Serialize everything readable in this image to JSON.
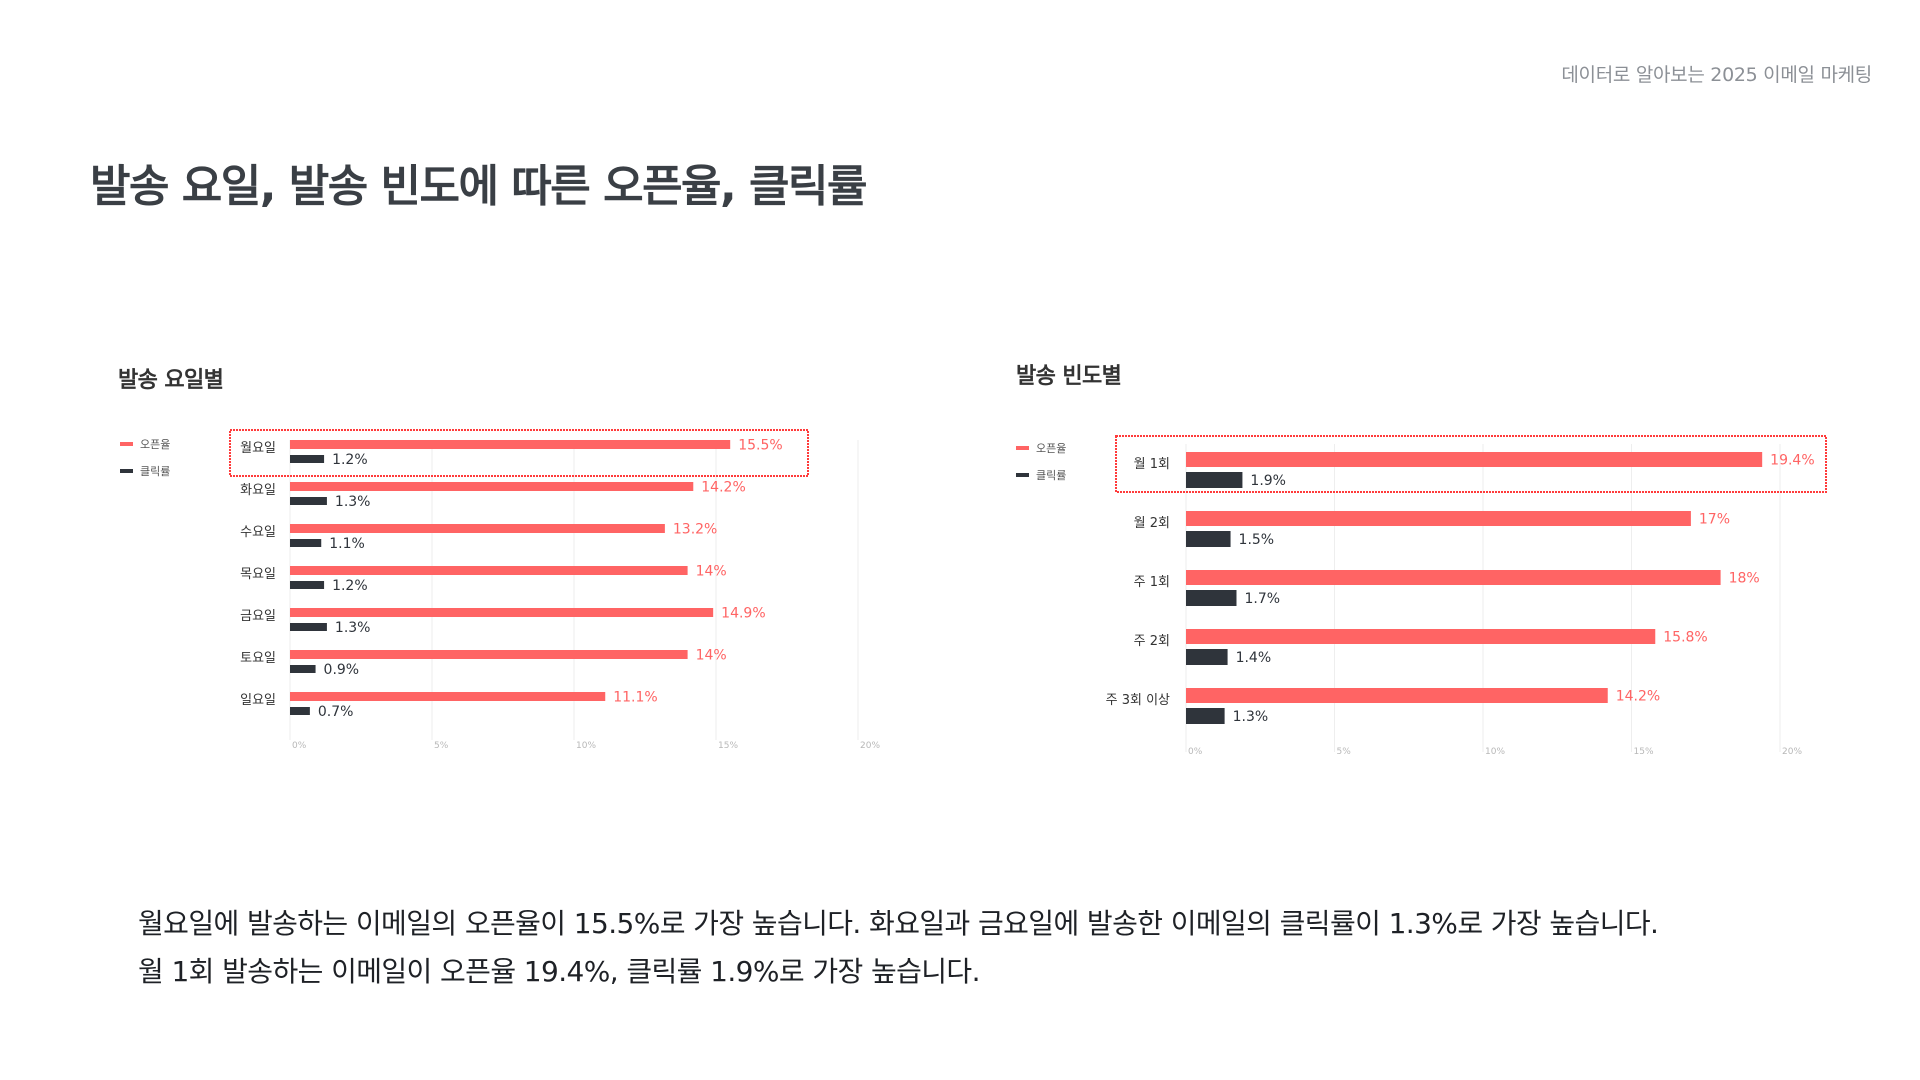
{
  "header": {
    "note": "데이터로 알아보는 2025 이메일 마케팅",
    "title": "발송 요일, 발송 빈도에 따른 오픈율, 클릭률"
  },
  "colors": {
    "open": "#ff6464",
    "click": "#2f343b",
    "highlight": "#ff3b3b",
    "grid": "#eeeeee",
    "tick": "#b8b8b8"
  },
  "chart_data": [
    {
      "type": "bar",
      "orientation": "horizontal",
      "title": "발송 요일별",
      "categories": [
        "월요일",
        "화요일",
        "수요일",
        "목요일",
        "금요일",
        "토요일",
        "일요일"
      ],
      "series": [
        {
          "name": "오픈율",
          "values": [
            15.5,
            14.2,
            13.2,
            14,
            14.9,
            14,
            11.1
          ],
          "labels": [
            "15.5%",
            "14.2%",
            "13.2%",
            "14%",
            "14.9%",
            "14%",
            "11.1%"
          ]
        },
        {
          "name": "클릭률",
          "values": [
            1.2,
            1.3,
            1.1,
            1.2,
            1.3,
            0.9,
            0.7
          ],
          "labels": [
            "1.2%",
            "1.3%",
            "1.1%",
            "1.2%",
            "1.3%",
            "0.9%",
            "0.7%"
          ]
        }
      ],
      "xlim": [
        0,
        20
      ],
      "xticks": [
        "0%",
        "5%",
        "10%",
        "15%",
        "20%"
      ],
      "highlight_category": "월요일",
      "legend": "left",
      "grid": true
    },
    {
      "type": "bar",
      "orientation": "horizontal",
      "title": "발송 빈도별",
      "categories": [
        "월 1회",
        "월 2회",
        "주 1회",
        "주 2회",
        "주 3회 이상"
      ],
      "series": [
        {
          "name": "오픈율",
          "values": [
            19.4,
            17,
            18,
            15.8,
            14.2
          ],
          "labels": [
            "19.4%",
            "17%",
            "18%",
            "15.8%",
            "14.2%"
          ]
        },
        {
          "name": "클릭률",
          "values": [
            1.9,
            1.5,
            1.7,
            1.4,
            1.3
          ],
          "labels": [
            "1.9%",
            "1.5%",
            "1.7%",
            "1.4%",
            "1.3%"
          ]
        }
      ],
      "xlim": [
        0,
        20
      ],
      "xticks": [
        "0%",
        "5%",
        "10%",
        "15%",
        "20%"
      ],
      "highlight_category": "월 1회",
      "legend": "left",
      "grid": true
    }
  ],
  "summary": {
    "line1": "월요일에 발송하는 이메일의 오픈율이 15.5%로 가장 높습니다. 화요일과 금요일에 발송한 이메일의 클릭률이 1.3%로 가장 높습니다.",
    "line2": "월 1회 발송하는 이메일이 오픈율 19.4%, 클릭률 1.9%로 가장 높습니다."
  }
}
